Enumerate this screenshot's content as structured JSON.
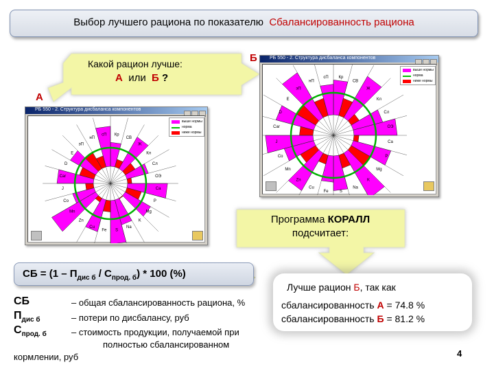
{
  "title": {
    "prefix": "Выбор лучшего рациона по показателю",
    "highlight": "Сбалансированность рациона"
  },
  "question": {
    "line1": "Какой рацион лучше:",
    "option_a": "А",
    "or": "или",
    "option_b": "Б",
    "qmark": "?"
  },
  "label_a": "А",
  "label_b": "Б",
  "window_big": {
    "title": "РБ 550 - 2. Структура дисбаланса компонентов",
    "legend": [
      "выше нормы",
      "норма",
      "ниже нормы"
    ],
    "spokes": [
      "Кр",
      "СВ",
      "Ж",
      "Кл",
      "Сл",
      "ОЭ",
      "Ca",
      "P",
      "Mg",
      "K",
      "Na",
      "S",
      "Fe",
      "Cu",
      "Zn",
      "Mn",
      "Co",
      "J",
      "Car",
      "D",
      "E",
      "эП",
      "нП",
      "сП"
    ]
  },
  "window_small": {
    "title": "РБ 550 - 2. Структура дисбаланса компонентов",
    "legend": [
      "выше нормы",
      "норма",
      "ниже нормы"
    ],
    "spokes": [
      "Кр",
      "СВ",
      "Ж",
      "Кл",
      "Сл",
      "ОЭ",
      "Ca",
      "P",
      "Mg",
      "K",
      "Na",
      "S",
      "Fe",
      "Cu",
      "Zn",
      "Mn",
      "Co",
      "J",
      "Car",
      "D",
      "E",
      "эП",
      "нП",
      "сП"
    ]
  },
  "program": {
    "line1_prefix": "Программа",
    "line1_name": "КОРАЛЛ",
    "line2": "подсчитает:"
  },
  "formula": {
    "start": "СБ = (1 – П",
    "sub1": "дис б",
    "mid": " / С",
    "sub2": "прод. б",
    "end": ") * 100 (%)"
  },
  "definitions": [
    {
      "sym": "СБ",
      "sub": "",
      "text": "– общая сбалансированность рациона, %"
    },
    {
      "sym": "П",
      "sub": "дис б",
      "text": "– потери по дисбалансу, руб"
    },
    {
      "sym": "С",
      "sub": "прод. б",
      "text": "– стоимость продукции, получаемой при"
    }
  ],
  "def_cont1": "полностью сбалансированном",
  "def_cont2": "кормлении, руб",
  "result": {
    "line1_prefix": "Лучше рацион",
    "line1_b": "Б",
    "line1_suffix": ", так как",
    "line2_prefix": "сбалансированность",
    "line2_a": "А",
    "line2_value": "= 74.8 %",
    "line3_prefix": "сбалансированность",
    "line3_b": "Б",
    "line3_value": "= 81.2 %"
  },
  "page_number": "4",
  "colors": {
    "above_norm": "#ff00ff",
    "norm": "#00c000",
    "below_norm": "#ff0000",
    "accent": "#c00000",
    "callout": "#f3f6a6"
  }
}
